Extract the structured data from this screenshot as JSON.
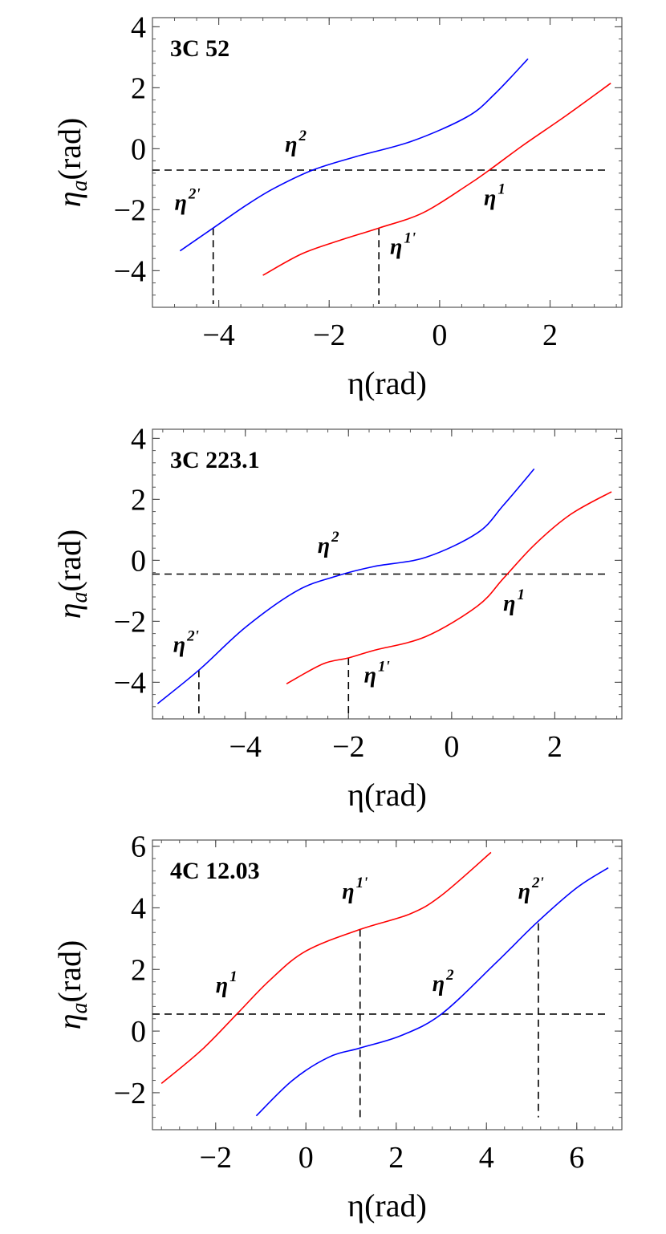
{
  "chart_data": [
    {
      "type": "line",
      "title": "3C 52",
      "xlabel": "η(rad)",
      "ylabel": "η_a(rad)",
      "xlim": [
        -5.2,
        3.3
      ],
      "ylim": [
        -5.2,
        4.3
      ],
      "xticks": [
        -4,
        -2,
        0,
        2
      ],
      "yticks": [
        -4,
        -2,
        0,
        2,
        4
      ],
      "xtick_labels": [
        "−4",
        "−2",
        "0",
        "2"
      ],
      "ytick_labels": [
        "−4",
        "−2",
        "0",
        "2",
        "4"
      ],
      "series": [
        {
          "color": "#0000ff",
          "x": [
            -4.7,
            -4.1,
            -3.5,
            -3.0,
            -2.3,
            -1.5,
            -0.5,
            0.5,
            1.0,
            1.6
          ],
          "y": [
            -3.35,
            -2.6,
            -1.85,
            -1.3,
            -0.7,
            -0.25,
            0.25,
            1.05,
            1.8,
            2.95
          ]
        },
        {
          "color": "#ff0000",
          "x": [
            -3.2,
            -2.5,
            -1.8,
            -1.1,
            -0.3,
            0.5,
            0.9,
            1.5,
            2.3,
            3.1
          ],
          "y": [
            -4.15,
            -3.45,
            -3.0,
            -2.6,
            -2.1,
            -1.2,
            -0.7,
            0.1,
            1.1,
            2.15
          ]
        }
      ],
      "hline": -0.7,
      "vlines": [
        {
          "x": -4.1,
          "y": -2.6
        },
        {
          "x": -1.1,
          "y": -2.6
        }
      ],
      "annotations": [
        {
          "base": "η",
          "sup": "2",
          "x": -2.8,
          "y": -0.1
        },
        {
          "base": "η",
          "sup": "2'",
          "x": -4.8,
          "y": -2.0
        },
        {
          "base": "η",
          "sup": "1",
          "x": 0.8,
          "y": -1.85
        },
        {
          "base": "η",
          "sup": "1'",
          "x": -0.9,
          "y": -3.45
        }
      ]
    },
    {
      "type": "line",
      "title": "3C 223.1",
      "xlabel": "η(rad)",
      "ylabel": "η_a(rad)",
      "xlim": [
        -5.8,
        3.3
      ],
      "ylim": [
        -5.2,
        4.3
      ],
      "xticks": [
        -4,
        -2,
        0,
        2
      ],
      "yticks": [
        -4,
        -2,
        0,
        2,
        4
      ],
      "xtick_labels": [
        "−4",
        "−2",
        "0",
        "2"
      ],
      "ytick_labels": [
        "−4",
        "−2",
        "0",
        "2",
        "4"
      ],
      "series": [
        {
          "color": "#0000ff",
          "x": [
            -5.7,
            -4.9,
            -4.0,
            -3.0,
            -2.2,
            -1.5,
            -0.5,
            0.5,
            1.0,
            1.6
          ],
          "y": [
            -4.7,
            -3.6,
            -2.2,
            -1.0,
            -0.5,
            -0.2,
            0.1,
            0.9,
            1.8,
            3.0
          ]
        },
        {
          "color": "#ff0000",
          "x": [
            -3.2,
            -2.5,
            -2.0,
            -1.5,
            -0.5,
            0.5,
            1.0,
            1.6,
            2.3,
            3.1
          ],
          "y": [
            -4.05,
            -3.4,
            -3.2,
            -2.95,
            -2.5,
            -1.5,
            -0.6,
            0.5,
            1.5,
            2.25
          ]
        }
      ],
      "hline": -0.45,
      "vlines": [
        {
          "x": -4.9,
          "y": -3.6
        },
        {
          "x": -2.0,
          "y": -3.2
        }
      ],
      "annotations": [
        {
          "base": "η",
          "sup": "2",
          "x": -2.6,
          "y": 0.25
        },
        {
          "base": "η",
          "sup": "2'",
          "x": -5.4,
          "y": -3.0
        },
        {
          "base": "η",
          "sup": "1",
          "x": 1.0,
          "y": -1.65
        },
        {
          "base": "η",
          "sup": "1'",
          "x": -1.7,
          "y": -4.0
        }
      ]
    },
    {
      "type": "line",
      "title": "4C 12.03",
      "xlabel": "η(rad)",
      "ylabel": "η_a(rad)",
      "xlim": [
        -3.4,
        7.0
      ],
      "ylim": [
        -3.2,
        6.2
      ],
      "xticks": [
        -2,
        0,
        2,
        4,
        6
      ],
      "yticks": [
        -2,
        0,
        2,
        4,
        6
      ],
      "xtick_labels": [
        "−2",
        "0",
        "2",
        "4",
        "6"
      ],
      "ytick_labels": [
        "−2",
        "0",
        "2",
        "4",
        "6"
      ],
      "series": [
        {
          "color": "#ff0000",
          "x": [
            -3.2,
            -2.3,
            -1.5,
            -0.8,
            0.0,
            1.2,
            2.3,
            3.0,
            4.1
          ],
          "y": [
            -1.7,
            -0.6,
            0.6,
            1.65,
            2.6,
            3.3,
            3.8,
            4.4,
            5.8
          ]
        },
        {
          "color": "#0000ff",
          "x": [
            -1.1,
            -0.3,
            0.5,
            1.2,
            2.1,
            3.0,
            4.2,
            5.1,
            6.0,
            6.7
          ],
          "y": [
            -2.75,
            -1.6,
            -0.85,
            -0.55,
            -0.15,
            0.55,
            2.2,
            3.5,
            4.65,
            5.3
          ]
        }
      ],
      "hline": 0.55,
      "vlines": [
        {
          "x": 1.2,
          "y": 3.3,
          "to": -2.8
        },
        {
          "x": 5.15,
          "y": 3.5,
          "to": -2.8
        }
      ],
      "annotations": [
        {
          "base": "η",
          "sup": "1",
          "x": -2.0,
          "y": 1.25
        },
        {
          "base": "η",
          "sup": "1'",
          "x": 0.8,
          "y": 4.3
        },
        {
          "base": "η",
          "sup": "2",
          "x": 2.8,
          "y": 1.3
        },
        {
          "base": "η",
          "sup": "2'",
          "x": 4.7,
          "y": 4.3
        }
      ]
    }
  ]
}
